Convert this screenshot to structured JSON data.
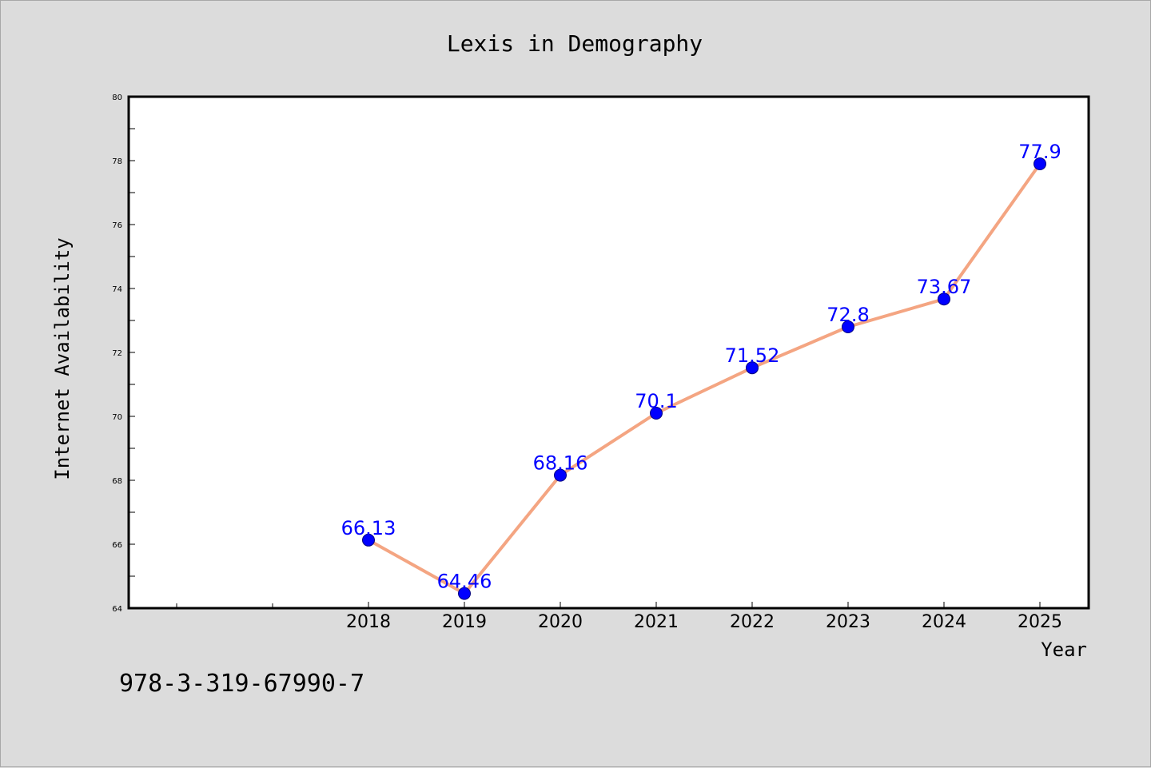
{
  "chart_data": {
    "type": "line",
    "title": "Lexis in Demography",
    "xlabel": "Year",
    "ylabel": "Internet Availability",
    "categories": [
      "2018",
      "2019",
      "2020",
      "2021",
      "2022",
      "2023",
      "2024",
      "2025"
    ],
    "series": [
      {
        "values": [
          66.13,
          64.46,
          68.16,
          70.1,
          71.52,
          72.8,
          73.67,
          77.9
        ],
        "labels": [
          "66.13",
          "64.46",
          "68.16",
          "70.1",
          "71.52",
          "72.8",
          "73.67",
          "77.9"
        ]
      }
    ],
    "ylim": [
      64,
      80
    ],
    "yticks": [
      "64",
      "66",
      "68",
      "70",
      "72",
      "74",
      "76",
      "78",
      "80"
    ],
    "grid": false,
    "legend": "none",
    "colors": {
      "line": "#f4a582",
      "marker": "#0000ff",
      "marker_edge": "#000080",
      "data_label": "#0000ff",
      "plot_background": "#ffffff",
      "figure_background": "#dcdcdc"
    }
  },
  "footer": {
    "isbn": "978-3-319-67990-7"
  }
}
